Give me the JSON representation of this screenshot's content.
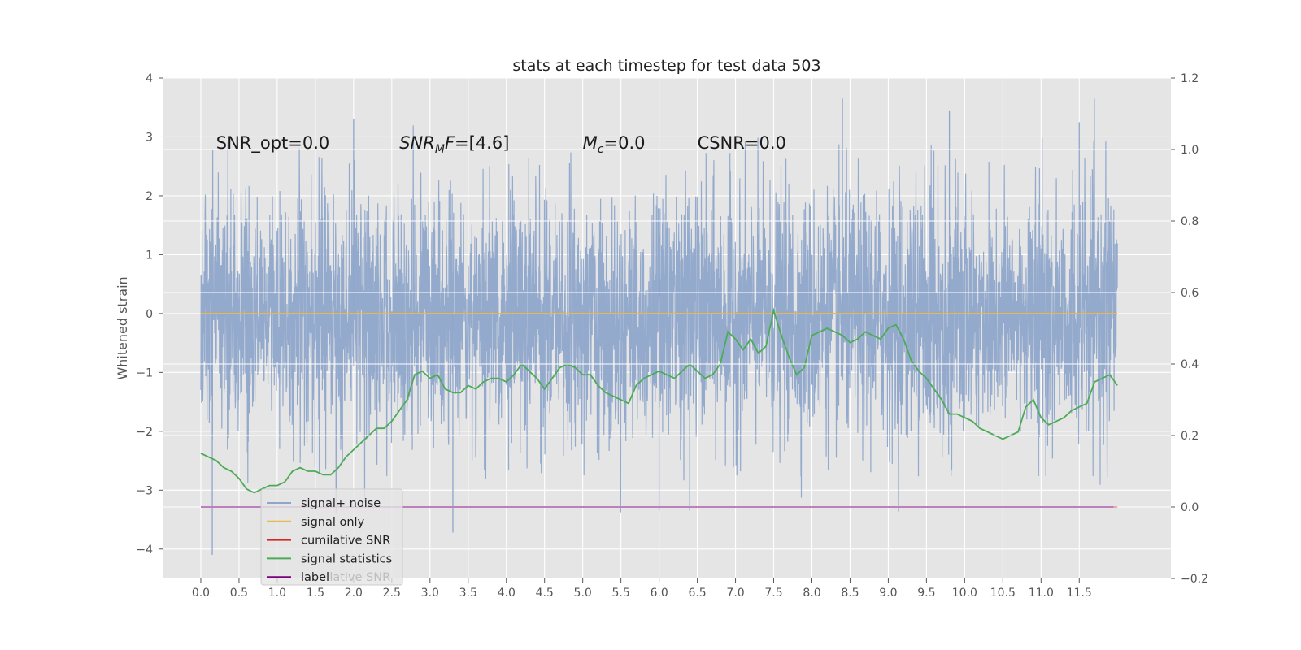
{
  "chart_data": {
    "type": "line",
    "title": "stats at each timestep for test data 503",
    "ylabel": "Whitened strain",
    "xlim": [
      -0.5,
      12.7
    ],
    "ylim": [
      -4.5,
      4.0
    ],
    "y2lim": [
      -0.2,
      1.2
    ],
    "x_ticks": [
      0.0,
      0.5,
      1.0,
      1.5,
      2.0,
      2.5,
      3.0,
      3.5,
      4.0,
      4.5,
      5.0,
      5.5,
      6.0,
      6.5,
      7.0,
      7.5,
      8.0,
      8.5,
      9.0,
      9.5,
      10.0,
      10.5,
      11.0,
      11.5
    ],
    "x_tick_labels": [
      "0.0",
      "0.5",
      "1.0",
      "1.5",
      "2.0",
      "2.5",
      "3.0",
      "3.5",
      "4.0",
      "4.5",
      "5.0",
      "5.5",
      "6.0",
      "6.5",
      "7.0",
      "7.5",
      "8.0",
      "8.5",
      "9.0",
      "9.5",
      "10.0",
      "10.5",
      "11.0",
      "11.5"
    ],
    "y_ticks": [
      4,
      3,
      2,
      1,
      0,
      -1,
      -2,
      -3,
      -4
    ],
    "y_tick_labels": [
      "4",
      "3",
      "2",
      "1",
      "0",
      "−1",
      "−2",
      "−3",
      "−4"
    ],
    "y2_ticks": [
      1.2,
      1.0,
      0.8,
      0.6,
      0.4,
      0.2,
      0.0,
      -0.2
    ],
    "y2_tick_labels": [
      "1.2",
      "1.0",
      "0.8",
      "0.6",
      "0.4",
      "0.2",
      "0.0",
      "−0.2"
    ],
    "grid": true,
    "background": "#e5e5e5",
    "annotations": [
      {
        "x": 0.2,
        "y": 2.88,
        "parts": [
          {
            "text": "SNR_opt=0.0",
            "italic": false
          }
        ]
      },
      {
        "x": 2.6,
        "y": 2.88,
        "parts": [
          {
            "text": "SNR",
            "italic": true
          },
          {
            "text": "M",
            "italic": true,
            "sub": true
          },
          {
            "text": "F",
            "italic": true
          },
          {
            "text": "=[4.6]",
            "italic": false
          }
        ]
      },
      {
        "x": 5.0,
        "y": 2.88,
        "parts": [
          {
            "text": "M",
            "italic": true
          },
          {
            "text": "c",
            "italic": true,
            "sub": true
          },
          {
            "text": "=0.0",
            "italic": false
          }
        ]
      },
      {
        "x": 6.5,
        "y": 2.88,
        "parts": [
          {
            "text": "CSNR=0.0",
            "italic": false
          }
        ]
      }
    ],
    "series": [
      {
        "name": "signal+ noise",
        "axis": "left",
        "color": "#8fa6cb",
        "kind": "noise",
        "x_range": [
          0.0,
          12.0
        ],
        "sample_count": 4096,
        "band": [
          -1.7,
          1.6
        ],
        "envelope_max": [
          2.75,
          3.65
        ],
        "envelope_min": [
          -4.1,
          -1.5
        ],
        "visible_spikes": [
          {
            "x": 0.15,
            "y": -4.1
          },
          {
            "x": 3.3,
            "y": -3.72
          },
          {
            "x": 8.4,
            "y": 3.65
          },
          {
            "x": 9.8,
            "y": 3.45
          },
          {
            "x": 2.0,
            "y": 3.3
          },
          {
            "x": 6.4,
            "y": -3.35
          },
          {
            "x": 6.0,
            "y": -3.35
          },
          {
            "x": 11.5,
            "y": 3.25
          }
        ]
      },
      {
        "name": "signal only",
        "axis": "left",
        "color": "#e8b84a",
        "x": [
          0.0,
          12.0
        ],
        "y": [
          0.0,
          0.0
        ]
      },
      {
        "name": "cumilative SNR",
        "axis": "right",
        "color": "#d62728",
        "x": [
          0.0,
          12.0
        ],
        "y": [
          0.0,
          0.0
        ]
      },
      {
        "name": "signal statistics",
        "axis": "right",
        "color": "#4daa57",
        "x": [
          0.0,
          0.1,
          0.2,
          0.3,
          0.4,
          0.5,
          0.6,
          0.7,
          0.8,
          0.9,
          1.0,
          1.1,
          1.2,
          1.3,
          1.4,
          1.5,
          1.6,
          1.7,
          1.8,
          1.9,
          2.0,
          2.1,
          2.2,
          2.3,
          2.4,
          2.5,
          2.6,
          2.7,
          2.8,
          2.9,
          3.0,
          3.1,
          3.2,
          3.3,
          3.4,
          3.5,
          3.6,
          3.7,
          3.8,
          3.9,
          4.0,
          4.1,
          4.2,
          4.3,
          4.4,
          4.5,
          4.6,
          4.7,
          4.8,
          4.9,
          5.0,
          5.1,
          5.2,
          5.3,
          5.4,
          5.5,
          5.6,
          5.7,
          5.8,
          5.9,
          6.0,
          6.1,
          6.2,
          6.3,
          6.4,
          6.5,
          6.6,
          6.7,
          6.8,
          6.9,
          7.0,
          7.1,
          7.2,
          7.3,
          7.4,
          7.5,
          7.6,
          7.7,
          7.8,
          7.9,
          8.0,
          8.1,
          8.2,
          8.3,
          8.4,
          8.5,
          8.6,
          8.7,
          8.8,
          8.9,
          9.0,
          9.1,
          9.2,
          9.3,
          9.4,
          9.5,
          9.6,
          9.7,
          9.8,
          9.9,
          10.0,
          10.1,
          10.2,
          10.3,
          10.4,
          10.5,
          10.6,
          10.7,
          10.8,
          10.9,
          11.0,
          11.1,
          11.2,
          11.3,
          11.4,
          11.5,
          11.6,
          11.7,
          11.8,
          11.9,
          12.0
        ],
        "y": [
          0.15,
          0.14,
          0.13,
          0.11,
          0.1,
          0.08,
          0.05,
          0.04,
          0.05,
          0.06,
          0.06,
          0.07,
          0.1,
          0.11,
          0.1,
          0.1,
          0.09,
          0.09,
          0.11,
          0.14,
          0.16,
          0.18,
          0.2,
          0.22,
          0.22,
          0.24,
          0.27,
          0.3,
          0.37,
          0.38,
          0.36,
          0.37,
          0.33,
          0.32,
          0.32,
          0.34,
          0.33,
          0.35,
          0.36,
          0.36,
          0.35,
          0.37,
          0.4,
          0.38,
          0.36,
          0.33,
          0.36,
          0.39,
          0.4,
          0.39,
          0.37,
          0.37,
          0.34,
          0.32,
          0.31,
          0.3,
          0.29,
          0.34,
          0.36,
          0.37,
          0.38,
          0.37,
          0.36,
          0.38,
          0.4,
          0.38,
          0.36,
          0.37,
          0.4,
          0.49,
          0.47,
          0.44,
          0.47,
          0.43,
          0.45,
          0.55,
          0.48,
          0.42,
          0.37,
          0.39,
          0.48,
          0.49,
          0.5,
          0.49,
          0.48,
          0.46,
          0.47,
          0.49,
          0.48,
          0.47,
          0.5,
          0.51,
          0.47,
          0.41,
          0.38,
          0.36,
          0.33,
          0.3,
          0.26,
          0.26,
          0.25,
          0.24,
          0.22,
          0.21,
          0.2,
          0.19,
          0.2,
          0.21,
          0.28,
          0.3,
          0.25,
          0.23,
          0.24,
          0.25,
          0.27,
          0.28,
          0.29,
          0.35,
          0.36,
          0.37,
          0.34
        ]
      },
      {
        "name": "label",
        "axis": "right",
        "color": "#7b007b",
        "x": [
          0.0,
          11.95
        ],
        "y": [
          0.0,
          0.0
        ]
      }
    ],
    "legend": {
      "placement": "lower-left",
      "entries": [
        "signal+ noise",
        "signal only",
        "cumilative SNR",
        "signal statistics",
        "label"
      ],
      "ghost_text": "cumilative SNR"
    }
  }
}
